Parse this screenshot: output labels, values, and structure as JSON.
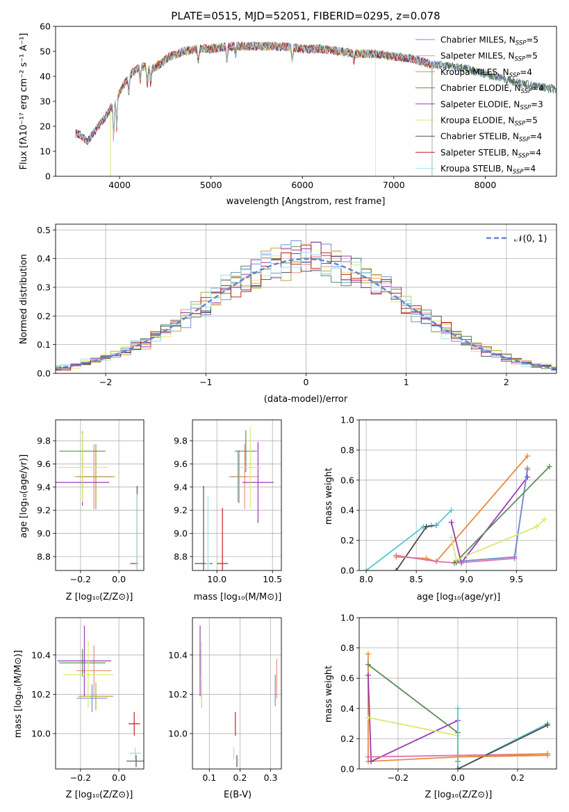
{
  "colors": {
    "series": [
      "#6a8fd8",
      "#e8907a",
      "#b8a53c",
      "#5c8a5c",
      "#9a38b8",
      "#dbe86a",
      "#505050",
      "#c02020",
      "#9ae0e8"
    ],
    "weight_lines": [
      "#55c7d0",
      "#4a4a4a",
      "#e88a40",
      "#9a38b8",
      "#e070b0",
      "#5c8a5c",
      "#dbe86a",
      "#c02020",
      "#6a8fd8"
    ],
    "normal_curve": "#5b86d6",
    "grid": "#b0b0b0"
  },
  "chart_data": [
    {
      "id": "spectrum",
      "type": "line",
      "title": "PLATE=0515, MJD=52051, FIBERID=0295, z=0.078",
      "xlabel": "wavelength [Angstrom, rest frame]",
      "ylabel": "Flux [fλ10⁻¹⁷ erg cm⁻² s⁻¹ A⁻¹]",
      "xlim": [
        3300,
        8780
      ],
      "ylim": [
        0,
        60
      ],
      "xticks": [
        4000,
        5000,
        6000,
        7000,
        8000
      ],
      "yticks": [
        0,
        10,
        20,
        30,
        40,
        50,
        60
      ],
      "grid": false,
      "legend_position": "top-right",
      "legend": [
        {
          "pre": "Chabrier MILES, N",
          "sub": "SSP",
          "post": "=5"
        },
        {
          "pre": "Salpeter MILES, N",
          "sub": "SSP",
          "post": "=5"
        },
        {
          "pre": "Kroupa MILES, N",
          "sub": "SSP",
          "post": "=4"
        },
        {
          "pre": "Chabrier ELODIE, N",
          "sub": "SSP",
          "post": "=4"
        },
        {
          "pre": "Salpeter ELODIE, N",
          "sub": "SSP",
          "post": "=3"
        },
        {
          "pre": "Kroupa ELODIE, N",
          "sub": "SSP",
          "post": "=5"
        },
        {
          "pre": "Chabrier STELIB, N",
          "sub": "SSP",
          "post": "=4"
        },
        {
          "pre": "Salpeter STELIB, N",
          "sub": "SSP",
          "post": "=4"
        },
        {
          "pre": "Kroupa STELIB, N",
          "sub": "SSP",
          "post": "=4"
        }
      ],
      "continuum": {
        "x": [
          3550,
          3650,
          3750,
          3850,
          3950,
          4050,
          4150,
          4250,
          4350,
          4450,
          4550,
          4700,
          4850,
          5000,
          5200,
          5400,
          5600,
          5800,
          6000,
          6200,
          6400,
          6600,
          6800,
          7000,
          7200,
          7400,
          7600,
          7800,
          8000,
          8200,
          8400,
          8600,
          8700
        ],
        "y": [
          17,
          14,
          19,
          24,
          30,
          37,
          42,
          44,
          43,
          45,
          48,
          50,
          51,
          51,
          52,
          52,
          52,
          52,
          51,
          51,
          50,
          49,
          49,
          48,
          47,
          45,
          44,
          43,
          41,
          39,
          37,
          36,
          35
        ]
      },
      "coverage": {
        "Kroupa MILES, NSSP=4": [
          3900,
          7420
        ],
        "Kroupa ELODIE, NSSP=5": [
          3900,
          6800
        ],
        "Salpeter STELIB, NSSP=4": [
          3520,
          7420
        ],
        "Chabrier STELIB, NSSP=4": [
          3520,
          8780
        ]
      }
    },
    {
      "id": "residuals",
      "type": "histogram",
      "xlabel": "(data-model)/error",
      "ylabel": "Normed distribution",
      "xlim": [
        -2.5,
        2.5
      ],
      "ylim": [
        0,
        0.52
      ],
      "xticks": [
        -2,
        -1,
        0,
        1,
        2
      ],
      "yticks": [
        0.0,
        0.1,
        0.2,
        0.3,
        0.4,
        0.5
      ],
      "grid": true,
      "legend_position": "top-right",
      "legend": [
        "𝒩(0, 1)"
      ],
      "bin_width": 0.1,
      "reference_curve": {
        "name": "𝒩(0, 1)",
        "mean": 0,
        "sigma": 1
      }
    },
    {
      "id": "age_vs_Z",
      "type": "errorbar",
      "xlabel": "Z [log₁₀(Z/Z⊙)]",
      "ylabel": "age  [log₁₀(age/yr)]",
      "xlim": [
        -0.33,
        0.13
      ],
      "ylim": [
        8.68,
        9.98
      ],
      "xticks": [
        -0.2,
        0.0
      ],
      "yticks": [
        8.8,
        9.0,
        9.2,
        9.4,
        9.6,
        9.8
      ],
      "grid": true,
      "points": [
        {
          "s": 0,
          "x": -0.12,
          "y": 9.49,
          "xerr": 0.08,
          "yerr": 0.28
        },
        {
          "s": 1,
          "x": -0.13,
          "y": 9.49,
          "xerr": 0.1,
          "yerr": 0.28
        },
        {
          "s": 2,
          "x": -0.12,
          "y": 9.49,
          "xerr": 0.1,
          "yerr": 0.25
        },
        {
          "s": 3,
          "x": -0.19,
          "y": 9.71,
          "xerr": 0.12,
          "yerr": 0.17
        },
        {
          "s": 4,
          "x": -0.19,
          "y": 9.44,
          "xerr": 0.14,
          "yerr": 0.2
        },
        {
          "s": 5,
          "x": -0.19,
          "y": 9.57,
          "xerr": 0.13,
          "yerr": 0.3
        },
        {
          "s": 6,
          "x": 0.095,
          "y": 8.74,
          "xerr": 0.0,
          "yerr": 0.67
        },
        {
          "s": 7,
          "x": 0.08,
          "y": 8.74,
          "xerr": 0.02,
          "yerr": 0.0
        },
        {
          "s": 8,
          "x": 0.095,
          "y": 8.74,
          "xerr": 0.0,
          "yerr": 0.6
        }
      ]
    },
    {
      "id": "age_vs_mass",
      "type": "errorbar",
      "xlabel": "mass [log₁₀(M/M⊙)]",
      "ylabel": "",
      "xlim": [
        9.78,
        10.58
      ],
      "ylim": [
        8.68,
        9.98
      ],
      "xticks": [
        10.0,
        10.5
      ],
      "yticks": [
        8.8,
        9.0,
        9.2,
        9.4,
        9.6,
        9.8
      ],
      "grid": true,
      "points": [
        {
          "s": 0,
          "x": 10.19,
          "y": 9.49,
          "xerr": 0.08,
          "yerr": 0.22
        },
        {
          "s": 1,
          "x": 10.25,
          "y": 9.49,
          "xerr": 0.13,
          "yerr": 0.28
        },
        {
          "s": 2,
          "x": 10.2,
          "y": 9.49,
          "xerr": 0.07,
          "yerr": 0.23
        },
        {
          "s": 3,
          "x": 10.26,
          "y": 9.71,
          "xerr": 0.1,
          "yerr": 0.18
        },
        {
          "s": 4,
          "x": 10.37,
          "y": 9.44,
          "xerr": 0.14,
          "yerr": 0.35
        },
        {
          "s": 5,
          "x": 10.3,
          "y": 9.57,
          "xerr": 0.1,
          "yerr": 0.35
        },
        {
          "s": 6,
          "x": 9.88,
          "y": 8.74,
          "xerr": 0.08,
          "yerr": 0.67
        },
        {
          "s": 7,
          "x": 10.05,
          "y": 8.74,
          "xerr": 0.05,
          "yerr": 0.48
        },
        {
          "s": 8,
          "x": 9.92,
          "y": 8.74,
          "xerr": 0.02,
          "yerr": 0.58
        }
      ]
    },
    {
      "id": "weight_vs_age",
      "type": "line",
      "xlabel": "age  [log₁₀(age/yr)]",
      "ylabel": "mass weight",
      "xlim": [
        7.93,
        9.9
      ],
      "ylim": [
        0,
        1
      ],
      "xticks": [
        8.0,
        8.5,
        9.0,
        9.5
      ],
      "yticks": [
        0.0,
        0.2,
        0.4,
        0.6,
        0.8,
        1.0
      ],
      "grid": true,
      "series": [
        {
          "c": 0,
          "x": [
            8.0,
            8.57,
            8.65,
            8.7
          ],
          "y": [
            0.0,
            0.29,
            0.3,
            0.3
          ]
        },
        {
          "c": 1,
          "x": [
            8.3,
            8.6,
            8.7
          ],
          "y": [
            0.0,
            0.29,
            0.3
          ]
        },
        {
          "c": 0,
          "x": [
            8.7,
            8.85
          ],
          "y": [
            0.3,
            0.4
          ]
        },
        {
          "c": 2,
          "x": [
            8.3,
            8.6,
            8.7,
            9.61
          ],
          "y": [
            0.09,
            0.08,
            0.06,
            0.76
          ]
        },
        {
          "c": 3,
          "x": [
            8.85,
            8.95,
            9.61
          ],
          "y": [
            0.32,
            0.05,
            0.62
          ]
        },
        {
          "c": 4,
          "x": [
            8.3,
            8.7,
            8.9,
            9.48,
            9.61
          ],
          "y": [
            0.1,
            0.06,
            0.05,
            0.08,
            0.68
          ]
        },
        {
          "c": 8,
          "x": [
            8.9,
            9.48,
            9.61
          ],
          "y": [
            0.06,
            0.09,
            0.67
          ]
        },
        {
          "c": 5,
          "x": [
            8.88,
            8.9,
            9.83
          ],
          "y": [
            0.05,
            0.06,
            0.69
          ]
        },
        {
          "c": 6,
          "x": [
            8.85,
            8.9,
            9.7,
            9.78
          ],
          "y": [
            0.22,
            0.07,
            0.29,
            0.34
          ]
        }
      ]
    },
    {
      "id": "mass_vs_Z",
      "type": "errorbar",
      "xlabel": "Z [log₁₀(Z/Z⊙)]",
      "ylabel": "mass [log₁₀(M/M⊙)]",
      "xlim": [
        -0.33,
        0.13
      ],
      "ylim": [
        9.82,
        10.59
      ],
      "xticks": [
        -0.2,
        0.0
      ],
      "yticks": [
        10.0,
        10.2,
        10.4
      ],
      "grid": true,
      "points": [
        {
          "s": 0,
          "x": -0.14,
          "y": 10.18,
          "xerr": 0.08,
          "yerr": 0.07
        },
        {
          "s": 1,
          "x": -0.13,
          "y": 10.32,
          "xerr": 0.09,
          "yerr": 0.13
        },
        {
          "s": 2,
          "x": -0.12,
          "y": 10.19,
          "xerr": 0.09,
          "yerr": 0.07
        },
        {
          "s": 3,
          "x": -0.19,
          "y": 10.36,
          "xerr": 0.12,
          "yerr": 0.07
        },
        {
          "s": 4,
          "x": -0.18,
          "y": 10.37,
          "xerr": 0.14,
          "yerr": 0.18
        },
        {
          "s": 5,
          "x": -0.16,
          "y": 10.3,
          "xerr": 0.13,
          "yerr": 0.17
        },
        {
          "s": 6,
          "x": 0.09,
          "y": 9.86,
          "xerr": 0.05,
          "yerr": 0.03
        },
        {
          "s": 7,
          "x": 0.08,
          "y": 10.05,
          "xerr": 0.03,
          "yerr": 0.06
        },
        {
          "s": 8,
          "x": 0.085,
          "y": 9.9,
          "xerr": 0.03,
          "yerr": 0.03
        }
      ]
    },
    {
      "id": "mass_vs_ebv",
      "type": "errorbar",
      "xlabel": "E(B-V)",
      "ylabel": "",
      "xlim": [
        0.045,
        0.335
      ],
      "ylim": [
        9.82,
        10.59
      ],
      "xticks": [
        0.1,
        0.2,
        0.3
      ],
      "yticks": [
        10.0,
        10.2,
        10.4
      ],
      "grid": true,
      "points": [
        {
          "s": 0,
          "x": 0.315,
          "y": 10.22,
          "xerr": 0,
          "yerr": 0.08
        },
        {
          "s": 1,
          "x": 0.32,
          "y": 10.28,
          "xerr": 0,
          "yerr": 0.1
        },
        {
          "s": 2,
          "x": 0.075,
          "y": 10.2,
          "xerr": 0,
          "yerr": 0.07
        },
        {
          "s": 3,
          "x": 0.07,
          "y": 10.36,
          "xerr": 0,
          "yerr": 0.07
        },
        {
          "s": 4,
          "x": 0.07,
          "y": 10.37,
          "xerr": 0,
          "yerr": 0.18
        },
        {
          "s": 5,
          "x": 0.075,
          "y": 10.3,
          "xerr": 0,
          "yerr": 0.17
        },
        {
          "s": 6,
          "x": 0.19,
          "y": 9.86,
          "xerr": 0,
          "yerr": 0.03
        },
        {
          "s": 7,
          "x": 0.185,
          "y": 10.05,
          "xerr": 0,
          "yerr": 0.06
        },
        {
          "s": 8,
          "x": 0.18,
          "y": 9.9,
          "xerr": 0,
          "yerr": 0.03
        }
      ]
    },
    {
      "id": "weight_vs_Z",
      "type": "line",
      "xlabel": "Z [log₁₀(Z/Z⊙)]",
      "ylabel": "mass weight",
      "xlim": [
        -0.33,
        0.33
      ],
      "ylim": [
        0,
        1
      ],
      "xticks": [
        -0.2,
        0.0,
        0.2
      ],
      "yticks": [
        0.0,
        0.2,
        0.4,
        0.6,
        0.8,
        1.0
      ],
      "grid": true,
      "series": [
        {
          "c": 2,
          "x": [
            -0.3,
            -0.3,
            0.0,
            0.3
          ],
          "y": [
            0.76,
            0.05,
            0.08,
            0.09
          ]
        },
        {
          "c": 3,
          "x": [
            -0.3,
            -0.29,
            0.0
          ],
          "y": [
            0.62,
            0.05,
            0.32
          ]
        },
        {
          "c": 4,
          "x": [
            -0.3,
            0.0,
            0.3
          ],
          "y": [
            0.08,
            0.09,
            0.1
          ]
        },
        {
          "c": 5,
          "x": [
            -0.3,
            0.0,
            0.0
          ],
          "y": [
            0.69,
            0.24,
            0.05
          ]
        },
        {
          "c": 6,
          "x": [
            -0.3,
            0.0
          ],
          "y": [
            0.34,
            0.22
          ]
        },
        {
          "c": 0,
          "x": [
            0.0,
            0.0,
            0.3
          ],
          "y": [
            0.4,
            0.0,
            0.3
          ]
        },
        {
          "c": 1,
          "x": [
            0.0,
            0.3
          ],
          "y": [
            0.0,
            0.29
          ]
        },
        {
          "c": 2,
          "x": [
            0.0,
            0.3
          ],
          "y": [
            0.08,
            0.1
          ]
        }
      ]
    }
  ]
}
